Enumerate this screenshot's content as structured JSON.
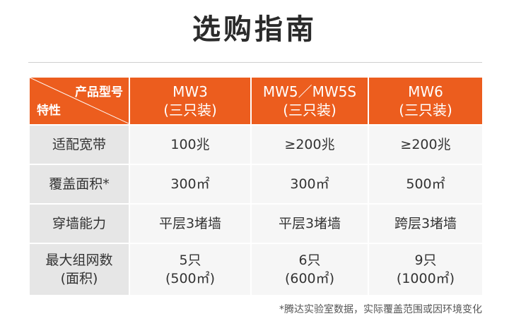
{
  "title": "选购指南",
  "header": {
    "corner_top": "产品型号",
    "corner_bottom": "特性",
    "models": [
      {
        "name": "MW3",
        "pack": "(三只装)"
      },
      {
        "name": "MW5／MW5S",
        "pack": "(三只装)"
      },
      {
        "name": "MW6",
        "pack": "(三只装)"
      }
    ]
  },
  "rows": [
    {
      "label": "适配宽带",
      "values": [
        "100兆",
        "≥200兆",
        "≥200兆"
      ]
    },
    {
      "label": "覆盖面积*",
      "values": [
        "300㎡",
        "300㎡",
        "500㎡"
      ]
    },
    {
      "label": "穿墙能力",
      "values": [
        "平层3堵墙",
        "平层3堵墙",
        "跨层3堵墙"
      ]
    },
    {
      "label_line1": "最大组网数",
      "label_line2": "(面积)",
      "values_line1": [
        "5只",
        "6只",
        "9只"
      ],
      "values_line2": [
        "(500㎡)",
        "(600㎡)",
        "(1000㎡)"
      ]
    }
  ],
  "footnote": "*腾达实验室数据，实际覆盖范围或因环境变化",
  "colors": {
    "accent": "#ec5d1e",
    "label_bg": "#e6e6e6",
    "cell_bg": "#f6f6f6"
  }
}
